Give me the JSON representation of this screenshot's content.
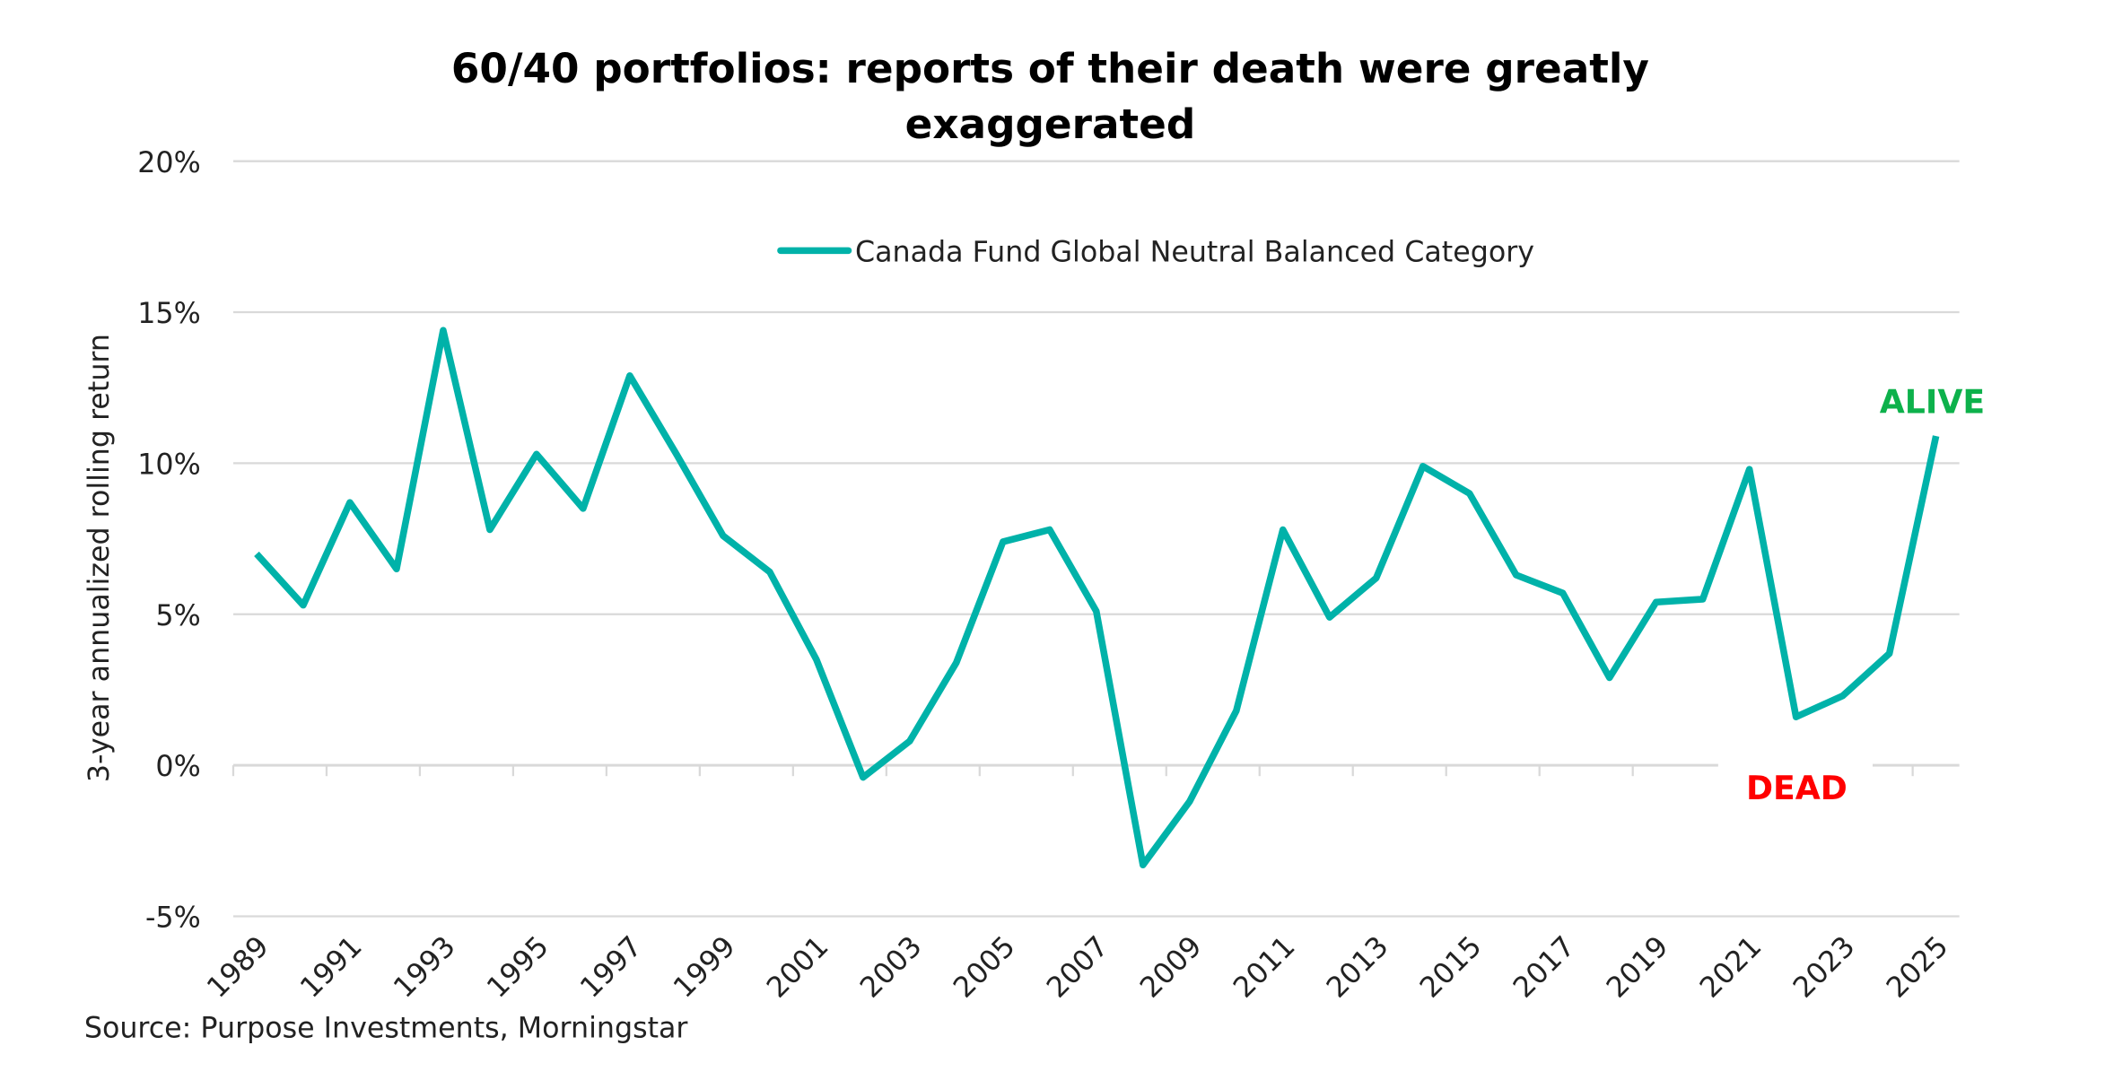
{
  "chart_data": {
    "type": "line",
    "title": "60/40 portfolios: reports of their death were greatly exaggerated",
    "title_lines": [
      "60/40 portfolios: reports of their death were greatly",
      "exaggerated"
    ],
    "xlabel": "",
    "ylabel": "3-year annualized rolling return",
    "ylim": [
      -5,
      20
    ],
    "y_ticks": [
      "20%",
      "15%",
      "10%",
      "5%",
      "0%",
      "-5%"
    ],
    "y_tick_values": [
      20,
      15,
      10,
      5,
      0,
      -5
    ],
    "grid": true,
    "legend_position": "top",
    "x": [
      1989,
      1990,
      1991,
      1992,
      1993,
      1994,
      1995,
      1996,
      1997,
      1998,
      1999,
      2000,
      2001,
      2002,
      2003,
      2004,
      2005,
      2006,
      2007,
      2008,
      2009,
      2010,
      2011,
      2012,
      2013,
      2014,
      2015,
      2016,
      2017,
      2018,
      2019,
      2020,
      2021,
      2022,
      2023,
      2024,
      2025
    ],
    "x_tick_labels": [
      "1989",
      "1991",
      "1993",
      "1995",
      "1997",
      "1999",
      "2001",
      "2003",
      "2005",
      "2007",
      "2009",
      "2011",
      "2013",
      "2015",
      "2017",
      "2019",
      "2021",
      "2023",
      "2025"
    ],
    "series": [
      {
        "name": "Canada Fund Global Neutral Balanced Category",
        "color": "#00b2a9",
        "values": [
          7.0,
          5.3,
          8.7,
          6.5,
          14.4,
          7.8,
          10.3,
          8.5,
          12.9,
          10.3,
          7.6,
          6.4,
          3.5,
          -0.4,
          0.8,
          3.4,
          7.4,
          7.8,
          5.1,
          -3.3,
          -1.2,
          1.8,
          7.8,
          4.9,
          6.2,
          9.9,
          9.0,
          6.3,
          5.7,
          2.9,
          5.4,
          5.5,
          9.8,
          1.6,
          2.3,
          3.7,
          10.9
        ]
      }
    ],
    "annotations": [
      {
        "text": "ALIVE",
        "color": "#0db14b",
        "x": 2025
      },
      {
        "text": "DEAD",
        "color": "#ff0000",
        "x": 2022
      }
    ],
    "source": "Source: Purpose Investments, Morningstar"
  }
}
